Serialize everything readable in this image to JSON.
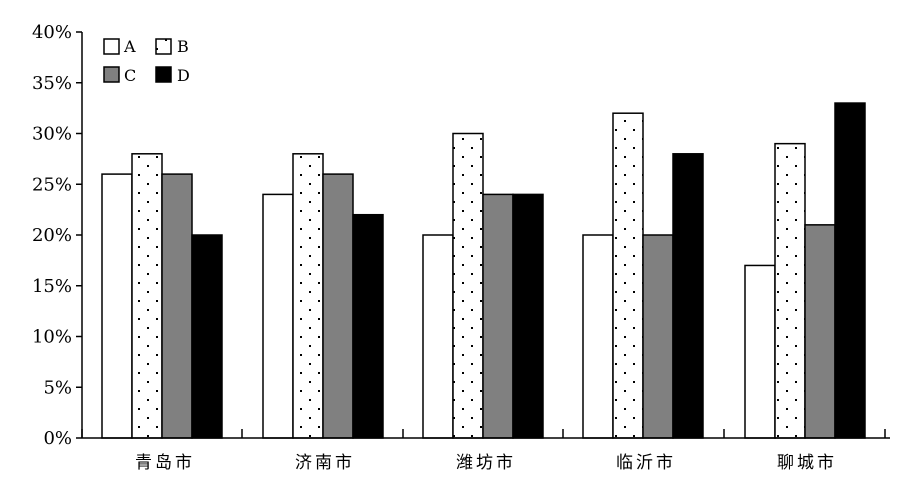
{
  "chart_data": {
    "type": "bar",
    "title": "",
    "xlabel": "",
    "ylabel": "",
    "categories": [
      "青岛市",
      "济南市",
      "潍坊市",
      "临沂市",
      "聊城市"
    ],
    "series": [
      {
        "name": "A",
        "values": [
          26,
          24,
          20,
          20,
          17
        ],
        "fill": "#ffffff",
        "pattern": "none"
      },
      {
        "name": "B",
        "values": [
          28,
          28,
          30,
          32,
          29
        ],
        "fill": "#ffffff",
        "pattern": "dots"
      },
      {
        "name": "C",
        "values": [
          26,
          26,
          24,
          20,
          21
        ],
        "fill": "#808080",
        "pattern": "none"
      },
      {
        "name": "D",
        "values": [
          20,
          22,
          24,
          28,
          33
        ],
        "fill": "#000000",
        "pattern": "none"
      }
    ],
    "ylim": [
      0,
      40
    ],
    "y_ticks": [
      0,
      5,
      10,
      15,
      20,
      25,
      30,
      35,
      40
    ],
    "y_tick_labels": [
      "0%",
      "5%",
      "10%",
      "15%",
      "20%",
      "25%",
      "30%",
      "35%",
      "40%"
    ],
    "grid": false,
    "legend_position": "top-left",
    "legend_layout": "2x2",
    "colors": {
      "stroke": "#000000",
      "gray": "#808080",
      "black": "#000000",
      "white": "#ffffff"
    }
  }
}
